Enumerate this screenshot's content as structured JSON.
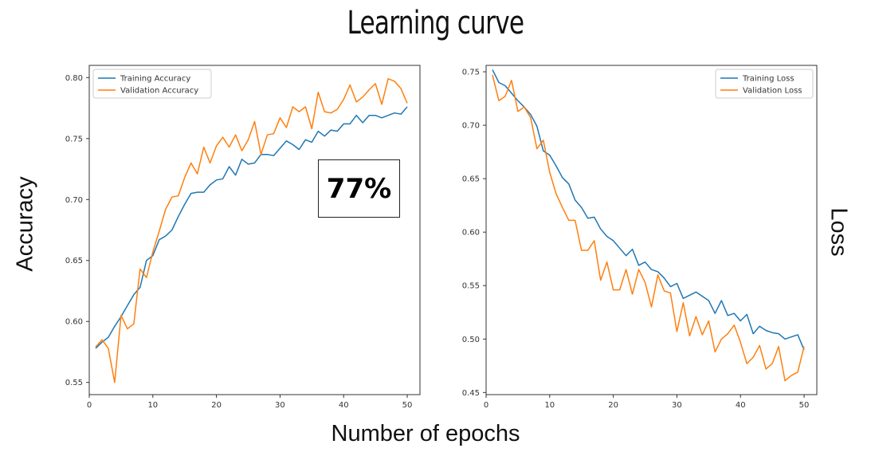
{
  "title": "Learning curve",
  "xlabel": "Number of epochs",
  "left_ylabel": "Accuracy",
  "right_ylabel": "Loss",
  "annotation": "77%",
  "colors": {
    "training": "#1f77b4",
    "validation": "#ff7f0e"
  },
  "chart_data": [
    {
      "type": "line",
      "xlim": [
        0,
        52
      ],
      "ylim": [
        0.54,
        0.81
      ],
      "xticks": [
        0,
        10,
        20,
        30,
        40,
        50
      ],
      "yticks": [
        0.55,
        0.6,
        0.65,
        0.7,
        0.75,
        0.8
      ],
      "legend_position": "top-left",
      "x": [
        1,
        2,
        3,
        4,
        5,
        6,
        7,
        8,
        9,
        10,
        11,
        12,
        13,
        14,
        15,
        16,
        17,
        18,
        19,
        20,
        21,
        22,
        23,
        24,
        25,
        26,
        27,
        28,
        29,
        30,
        31,
        32,
        33,
        34,
        35,
        36,
        37,
        38,
        39,
        40,
        41,
        42,
        43,
        44,
        45,
        46,
        47,
        48,
        49,
        50
      ],
      "series": [
        {
          "name": "Training Accuracy",
          "values": [
            0.578,
            0.583,
            0.587,
            0.596,
            0.604,
            0.613,
            0.622,
            0.628,
            0.65,
            0.654,
            0.667,
            0.67,
            0.675,
            0.686,
            0.696,
            0.705,
            0.706,
            0.706,
            0.712,
            0.716,
            0.717,
            0.727,
            0.72,
            0.733,
            0.729,
            0.73,
            0.737,
            0.737,
            0.736,
            0.742,
            0.748,
            0.745,
            0.741,
            0.749,
            0.747,
            0.756,
            0.752,
            0.757,
            0.756,
            0.762,
            0.762,
            0.769,
            0.763,
            0.769,
            0.769,
            0.767,
            0.769,
            0.771,
            0.77,
            0.776
          ]
        },
        {
          "name": "Validation Accuracy",
          "values": [
            0.579,
            0.585,
            0.578,
            0.55,
            0.605,
            0.594,
            0.598,
            0.643,
            0.636,
            0.657,
            0.674,
            0.692,
            0.702,
            0.703,
            0.718,
            0.73,
            0.721,
            0.743,
            0.73,
            0.744,
            0.751,
            0.743,
            0.753,
            0.74,
            0.749,
            0.764,
            0.737,
            0.753,
            0.754,
            0.767,
            0.759,
            0.776,
            0.772,
            0.776,
            0.758,
            0.788,
            0.772,
            0.771,
            0.774,
            0.782,
            0.794,
            0.78,
            0.784,
            0.79,
            0.795,
            0.778,
            0.799,
            0.797,
            0.791,
            0.779
          ]
        }
      ]
    },
    {
      "type": "line",
      "xlim": [
        0,
        52
      ],
      "ylim": [
        0.448,
        0.756
      ],
      "xticks": [
        0,
        10,
        20,
        30,
        40,
        50
      ],
      "yticks": [
        0.45,
        0.5,
        0.55,
        0.6,
        0.65,
        0.7,
        0.75
      ],
      "legend_position": "top-right",
      "x": [
        1,
        2,
        3,
        4,
        5,
        6,
        7,
        8,
        9,
        10,
        11,
        12,
        13,
        14,
        15,
        16,
        17,
        18,
        19,
        20,
        21,
        22,
        23,
        24,
        25,
        26,
        27,
        28,
        29,
        30,
        31,
        32,
        33,
        34,
        35,
        36,
        37,
        38,
        39,
        40,
        41,
        42,
        43,
        44,
        45,
        46,
        47,
        48,
        49,
        50
      ],
      "series": [
        {
          "name": "Training Loss",
          "values": [
            0.752,
            0.74,
            0.737,
            0.73,
            0.723,
            0.717,
            0.71,
            0.699,
            0.676,
            0.672,
            0.662,
            0.651,
            0.645,
            0.63,
            0.623,
            0.613,
            0.614,
            0.603,
            0.596,
            0.592,
            0.585,
            0.578,
            0.584,
            0.569,
            0.572,
            0.565,
            0.563,
            0.557,
            0.549,
            0.552,
            0.538,
            0.541,
            0.544,
            0.54,
            0.536,
            0.524,
            0.536,
            0.522,
            0.524,
            0.517,
            0.523,
            0.505,
            0.512,
            0.508,
            0.506,
            0.505,
            0.5,
            0.502,
            0.504,
            0.49
          ]
        },
        {
          "name": "Validation Loss",
          "values": [
            0.747,
            0.723,
            0.727,
            0.742,
            0.713,
            0.717,
            0.707,
            0.678,
            0.686,
            0.656,
            0.636,
            0.623,
            0.611,
            0.611,
            0.583,
            0.583,
            0.592,
            0.555,
            0.572,
            0.546,
            0.546,
            0.565,
            0.542,
            0.565,
            0.553,
            0.53,
            0.56,
            0.545,
            0.543,
            0.507,
            0.534,
            0.503,
            0.521,
            0.504,
            0.517,
            0.488,
            0.5,
            0.505,
            0.513,
            0.497,
            0.477,
            0.483,
            0.494,
            0.472,
            0.477,
            0.493,
            0.461,
            0.466,
            0.469,
            0.493
          ]
        }
      ]
    }
  ]
}
